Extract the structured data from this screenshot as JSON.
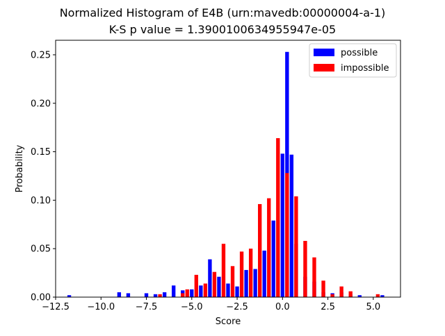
{
  "chart_data": {
    "type": "bar",
    "title": "Normalized Histogram of E4B (urn:mavedb:00000004-a-1)",
    "subtitle": "K-S p value = 1.3900100634955947e-05",
    "xlabel": "Score",
    "ylabel": "Probability",
    "xlim": [
      -12.5,
      6.5
    ],
    "ylim": [
      0,
      0.265
    ],
    "xticks": [
      "−12.5",
      "−10.0",
      "−7.5",
      "−5.0",
      "−2.5",
      "0.0",
      "2.5",
      "5.0"
    ],
    "xtick_values": [
      -12.5,
      -10.0,
      -7.5,
      -5.0,
      -2.5,
      0.0,
      2.5,
      5.0
    ],
    "yticks": [
      "0.00",
      "0.05",
      "0.10",
      "0.15",
      "0.20",
      "0.25"
    ],
    "ytick_values": [
      0.0,
      0.05,
      0.1,
      0.15,
      0.2,
      0.25
    ],
    "grid": false,
    "legend_position": "top-right",
    "bin_centers": [
      -11.75,
      -11.5,
      -11.25,
      -11.0,
      -10.75,
      -10.5,
      -10.25,
      -10.0,
      -9.75,
      -9.5,
      -9.25,
      -9.0,
      -8.75,
      -8.5,
      -8.25,
      -8.0,
      -7.75,
      -7.5,
      -7.25,
      -7.0,
      -6.75,
      -6.5,
      -6.25,
      -6.0,
      -5.75,
      -5.5,
      -5.25,
      -5.0,
      -4.75,
      -4.5,
      -4.25,
      -4.0,
      -3.75,
      -3.5,
      -3.25,
      -3.0,
      -2.75,
      -2.5,
      -2.25,
      -2.0,
      -1.75,
      -1.5,
      -1.25,
      -1.0,
      -0.75,
      -0.5,
      -0.25,
      0.0,
      0.25,
      0.5,
      0.75,
      1.0,
      1.25,
      1.5,
      1.75,
      2.0,
      2.25,
      2.5,
      2.75,
      3.0,
      3.25,
      3.5,
      3.75,
      4.0,
      4.25,
      4.5,
      4.75,
      5.0,
      5.25,
      5.5
    ],
    "series": [
      {
        "name": "possible",
        "color": "#0000ff",
        "values": [
          0.002,
          0,
          0,
          0,
          0,
          0,
          0,
          0,
          0,
          0,
          0,
          0.005,
          0,
          0.004,
          0,
          0,
          0,
          0.004,
          0,
          0.003,
          0,
          0.005,
          0,
          0.012,
          0,
          0.007,
          0,
          0.008,
          0,
          0.012,
          0,
          0.039,
          0,
          0.021,
          0,
          0.014,
          0,
          0.011,
          0,
          0.028,
          0,
          0.029,
          0,
          0.048,
          0,
          0.079,
          0,
          0.148,
          0.253,
          0.147,
          0.055,
          0,
          0.021,
          0,
          0.016,
          0,
          0.005,
          0,
          0.004,
          0,
          0.005,
          0,
          0.003,
          0,
          0.002,
          0,
          0,
          0,
          0,
          0.002
        ]
      },
      {
        "name": "impossible",
        "color": "#ff0000",
        "values": [
          0,
          0,
          0,
          0,
          0,
          0,
          0,
          0,
          0,
          0,
          0,
          0,
          0,
          0,
          0,
          0,
          0,
          0,
          0,
          0,
          0.003,
          0,
          0,
          0,
          0,
          0.004,
          0.008,
          0,
          0.023,
          0,
          0.014,
          0,
          0.026,
          0,
          0.055,
          0,
          0.032,
          0,
          0.047,
          0,
          0.05,
          0,
          0.096,
          0,
          0.102,
          0,
          0.164,
          0,
          0.128,
          0,
          0.104,
          0,
          0.058,
          0,
          0.041,
          0,
          0.017,
          0,
          0.003,
          0,
          0.011,
          0,
          0.006,
          0,
          0,
          0,
          0,
          0,
          0.003,
          0
        ]
      }
    ]
  }
}
